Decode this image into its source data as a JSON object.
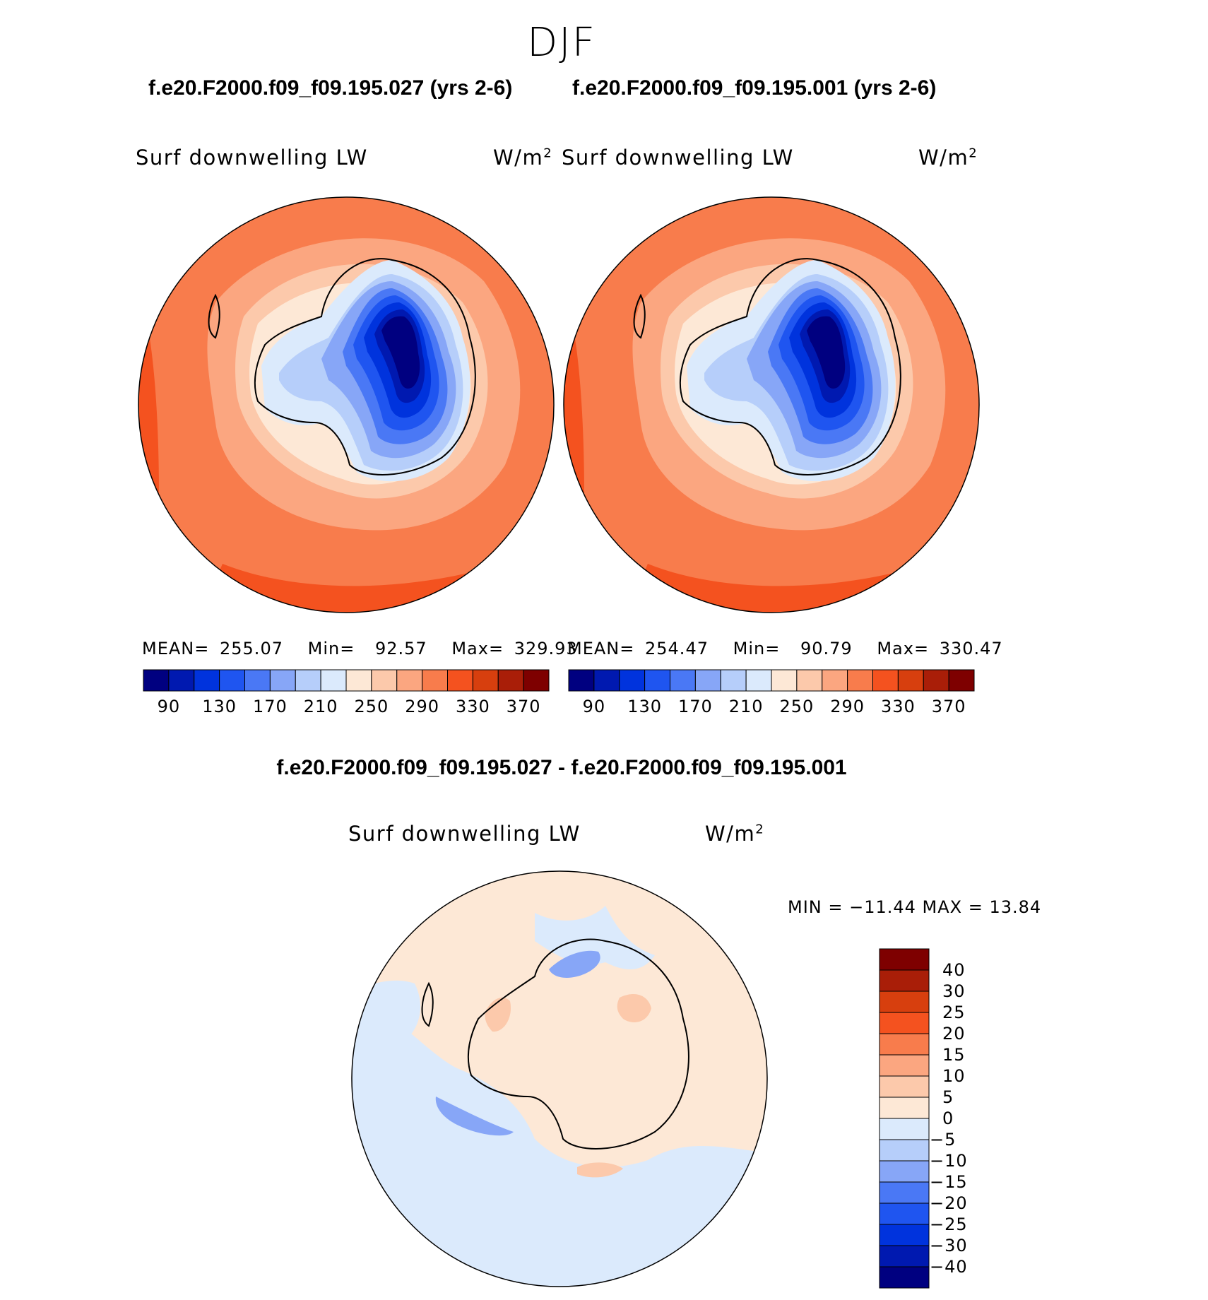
{
  "title": "DJF",
  "colors": {
    "levels12": [
      "#000080",
      "#0019b0",
      "#0033dd",
      "#1f55f0",
      "#4a78f5",
      "#87a6f7",
      "#b6cefa",
      "#dbeafc",
      "#fde8d6",
      "#fcc9ab",
      "#fba680",
      "#f87c4c",
      "#f4521f",
      "#d73f0e",
      "#a91e08",
      "#7e0000"
    ],
    "levels_diff": [
      "#000080",
      "#0019b0",
      "#0033dd",
      "#1f55f0",
      "#4a78f5",
      "#87a6f7",
      "#b6cefa",
      "#dbeafc",
      "#fde8d6",
      "#fcc9ab",
      "#fba680",
      "#f87c4c",
      "#f4521f",
      "#d73f0e",
      "#a91e08",
      "#7e0000"
    ],
    "coast": "#000000"
  },
  "panels": {
    "left": {
      "case": "f.e20.F2000.f09_f09.195.027 (yrs 2-6)",
      "variable": "Surf  downwelling LW",
      "units": "W/m",
      "units_exp": "2",
      "mean_label": "MEAN=",
      "mean": "255.07",
      "min_label": "Min=",
      "min": "92.57",
      "max_label": "Max=",
      "max": "329.93"
    },
    "right": {
      "case": "f.e20.F2000.f09_f09.195.001 (yrs 2-6)",
      "variable": "Surf  downwelling LW",
      "units": "W/m",
      "units_exp": "2",
      "mean_label": "MEAN=",
      "mean": "254.47",
      "min_label": "Min=",
      "min": "90.79",
      "max_label": "Max=",
      "max": "330.47"
    },
    "diff": {
      "title": "f.e20.F2000.f09_f09.195.027 - f.e20.F2000.f09_f09.195.001",
      "variable": "Surf  downwelling LW",
      "units": "W/m",
      "units_exp": "2",
      "minmax": "MIN = −11.44 MAX =   13.84"
    }
  },
  "chart_data": [
    {
      "type": "heatmap",
      "title": "Surf  downwelling LW",
      "case": "f.e20.F2000.f09_f09.195.027 (yrs 2-6)",
      "projection": "south polar stereographic",
      "units": "W/m2",
      "contour_levels": [
        90,
        110,
        130,
        150,
        170,
        190,
        210,
        230,
        250,
        270,
        290,
        310,
        330,
        350,
        370
      ],
      "colorbar_tick_labels": [
        "90",
        "130",
        "170",
        "210",
        "250",
        "290",
        "330",
        "370"
      ],
      "stats": {
        "mean": 255.07,
        "min": 92.57,
        "max": 329.93
      }
    },
    {
      "type": "heatmap",
      "title": "Surf  downwelling LW",
      "case": "f.e20.F2000.f09_f09.195.001 (yrs 2-6)",
      "projection": "south polar stereographic",
      "units": "W/m2",
      "contour_levels": [
        90,
        110,
        130,
        150,
        170,
        190,
        210,
        230,
        250,
        270,
        290,
        310,
        330,
        350,
        370
      ],
      "colorbar_tick_labels": [
        "90",
        "130",
        "170",
        "210",
        "250",
        "290",
        "330",
        "370"
      ],
      "stats": {
        "mean": 254.47,
        "min": 90.79,
        "max": 330.47
      }
    },
    {
      "type": "heatmap",
      "title": "Surf  downwelling LW",
      "case": "f.e20.F2000.f09_f09.195.027 - f.e20.F2000.f09_f09.195.001",
      "projection": "south polar stereographic",
      "units": "W/m2",
      "contour_levels": [
        -40,
        -30,
        -25,
        -20,
        -15,
        -10,
        -5,
        0,
        5,
        10,
        15,
        20,
        25,
        30,
        40
      ],
      "colorbar_tick_labels": [
        "40",
        "30",
        "25",
        "20",
        "15",
        "10",
        "5",
        "0",
        "−5",
        "−10",
        "−15",
        "−20",
        "−25",
        "−30",
        "−40"
      ],
      "stats": {
        "min": -11.44,
        "max": 13.84
      }
    }
  ]
}
